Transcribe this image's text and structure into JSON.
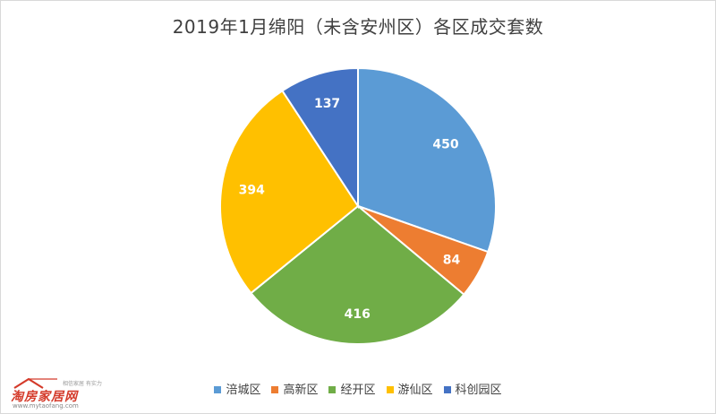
{
  "chart_data": {
    "type": "pie",
    "title": "2019年1月绵阳（未含安州区）各区成交套数",
    "categories": [
      "涪城区",
      "高新区",
      "经开区",
      "游仙区",
      "科创园区"
    ],
    "values": [
      450,
      84,
      416,
      394,
      137
    ],
    "colors": [
      "#5b9bd5",
      "#ed7d31",
      "#70ad47",
      "#ffc000",
      "#4472c4"
    ],
    "legend_position": "bottom",
    "start_angle": "12 o'clock, clockwise",
    "data_labels": "inside, white bold"
  },
  "watermark": {
    "brand": "淘房家居网",
    "url": "www.mytaofang.com",
    "slogan": "相信家居 有实力"
  }
}
